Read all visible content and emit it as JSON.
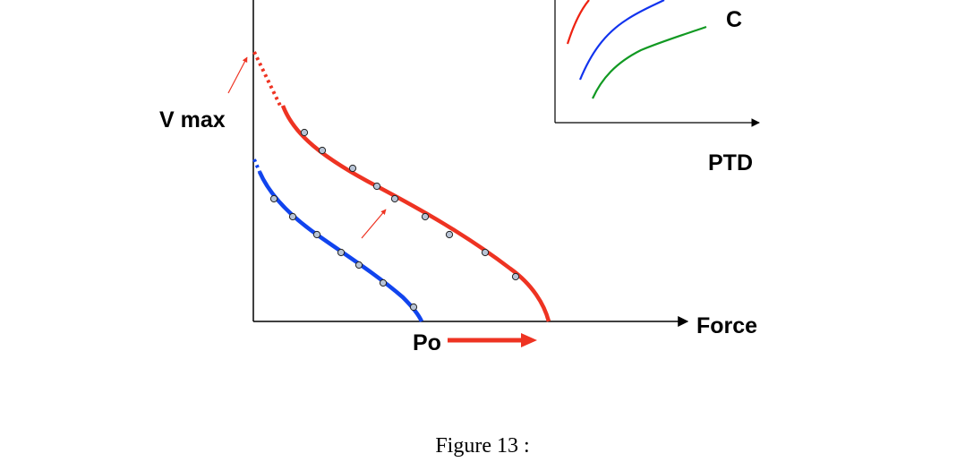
{
  "main_chart": {
    "x_label": "Force",
    "y_label": "V max",
    "po_label": "Po",
    "series": [
      {
        "color": "#ee3322",
        "points": [
          [
            340,
            148
          ],
          [
            360,
            168
          ],
          [
            394,
            188
          ],
          [
            421,
            208
          ],
          [
            441,
            222
          ],
          [
            475,
            242
          ],
          [
            502,
            262
          ],
          [
            542,
            282
          ],
          [
            576,
            309
          ]
        ]
      },
      {
        "color": "#1144ee",
        "points": [
          [
            306,
            222
          ],
          [
            327,
            242
          ],
          [
            354,
            262
          ],
          [
            381,
            282
          ],
          [
            401,
            296
          ],
          [
            428,
            316
          ],
          [
            462,
            343
          ]
        ]
      }
    ]
  },
  "inset_chart": {
    "x_label": "PTD",
    "curve_label": "C",
    "colors": {
      "red": "#ee2211",
      "blue": "#1133ee",
      "green": "#119922"
    }
  },
  "caption": "Figure 13 :"
}
